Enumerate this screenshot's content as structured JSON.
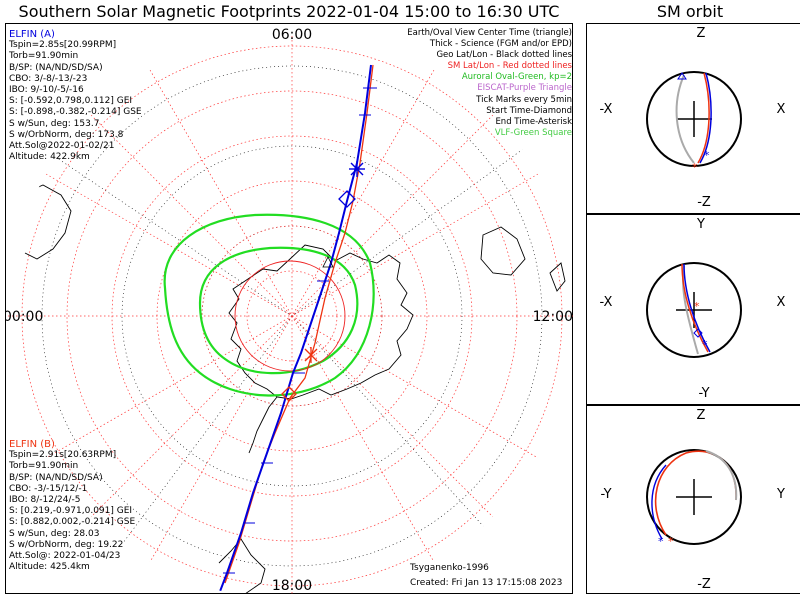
{
  "title": "Southern Solar Magnetic Footprints 2022-01-04 15:00 to 16:30 UTC",
  "orbit_title": "SM orbit",
  "colors": {
    "elfin_a": "#0000dd",
    "elfin_b": "#ee3311",
    "oval": "#22dd22",
    "grid": "#ff3333",
    "geo": "#000000"
  },
  "elfin_a": {
    "name": "ELFIN (A)",
    "lines": [
      "Tspin=2.85s[20.99RPM]",
      "Torb=91.90min",
      "B/SP: (NA/ND/SD/SA)",
      "CBO: 3/-8/-13/-23",
      "IBO: 9/-10/-5/-16",
      "S: [-0.592,0.798,0.112] GEI",
      "S: [-0.898,-0.382,-0.214] GSE",
      "S w/Sun, deg: 153.7",
      "S w/OrbNorm, deg: 173.8",
      "Att.Sol@2022-01-02/21",
      "Altitude: 422.9km"
    ]
  },
  "elfin_b": {
    "name": "ELFIN (B)",
    "lines": [
      "Tspin=2.91s[20.63RPM]",
      "Torb=91.90min",
      "B/SP: (NA/ND/SD/SA)",
      "CBO: -3/-15/12/-1",
      "IBO: 8/-12/24/-5",
      "S: [0.219,-0.971,0.091] GEI",
      "S: [0.882,0.002,-0.214] GSE",
      "S w/Sun, deg: 28.03",
      "S w/OrbNorm, deg: 19.22",
      "Att.Sol@: 2022-01-04/23",
      "Altitude: 425.4km"
    ]
  },
  "legend": [
    {
      "text": "Earth/Oval View Center Time (triangle)",
      "color": "#000000"
    },
    {
      "text": "Thick - Science (FGM and/or EPD)",
      "color": "#000000"
    },
    {
      "text": "Geo Lat/Lon - Black dotted lines",
      "color": "#000000"
    },
    {
      "text": "SM Lat/Lon - Red dotted lines",
      "color": "#ee2222"
    },
    {
      "text": "Auroral Oval-Green, kp=2",
      "color": "#22bb22"
    },
    {
      "text": "EISCAT-Purple Triangle",
      "color": "#bb66cc"
    },
    {
      "text": "Tick Marks every 5min",
      "color": "#000000"
    },
    {
      "text": "Start Time-Diamond",
      "color": "#000000"
    },
    {
      "text": "End Time-Asterisk",
      "color": "#000000"
    },
    {
      "text": "VLF-Green Square",
      "color": "#44cc44"
    }
  ],
  "mlt_labels": {
    "top": "06:00",
    "bottom": "18:00",
    "left": "00:00",
    "right": "12:00"
  },
  "footer": {
    "author": "Tsyganenko-1996",
    "created": "Created: Fri Jan 13 17:15:08 2023"
  },
  "orbit_panels": [
    {
      "top": "Z",
      "bottom": "-Z",
      "left": "-X",
      "right": "X"
    },
    {
      "top": "Y",
      "bottom": "-Y",
      "left": "-X",
      "right": "X"
    },
    {
      "top": "Z",
      "bottom": "-Z",
      "left": "-Y",
      "right": "Y"
    }
  ],
  "chart_data": {
    "type": "polar-map",
    "projection": "southern hemisphere magnetic footprints, SM coordinates",
    "time_range": [
      "2022-01-04 15:00",
      "2022-01-04 16:30"
    ],
    "kp": 2,
    "mlt_axis": [
      "06:00",
      "12:00",
      "18:00",
      "00:00"
    ],
    "series": [
      {
        "name": "ELFIN (A)",
        "color": "#0000dd"
      },
      {
        "name": "ELFIN (B)",
        "color": "#ee3311"
      }
    ]
  }
}
